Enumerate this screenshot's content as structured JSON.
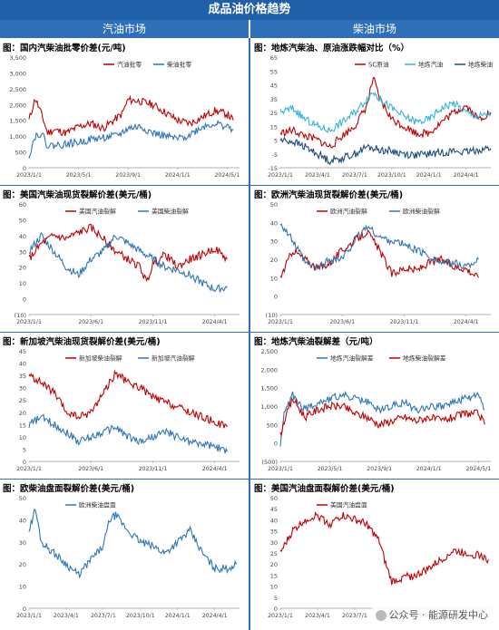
{
  "header": {
    "title": "成品油价格趋势",
    "left": "汽油市场",
    "right": "柴油市场"
  },
  "watermark": "公众号 · 能源研发中心",
  "colors": {
    "red": "#c00000",
    "blue": "#2e75b6",
    "cyan": "#33b5d9",
    "navy": "#1f4e79",
    "header": "#1f5fa8"
  },
  "chart_data": [
    {
      "id": "p1",
      "type": "line",
      "title": "图：国内汽柴油批零价差(元/吨)",
      "yticks": [
        "3,500",
        "3,000",
        "2,500",
        "2,000",
        "1,500",
        "1,000",
        "500",
        "0"
      ],
      "ylim": [
        0,
        3500
      ],
      "xticks": [
        "2023/1/1",
        "2023/5/1",
        "2023/9/1",
        "2024/1/1",
        "2024/5/1"
      ],
      "xlim": [
        0,
        17
      ],
      "xtick_pos": [
        0,
        4,
        8,
        12,
        16
      ],
      "legend": "top-right",
      "series": [
        {
          "name": "汽油批零",
          "color": "#c00000",
          "seed": 11,
          "x": [
            0,
            0.5,
            1,
            1.5,
            2,
            3,
            4,
            5,
            6,
            7,
            7.5,
            8,
            9,
            10,
            11,
            12,
            13,
            14,
            15,
            16,
            16.5
          ],
          "values": [
            1500,
            2200,
            1700,
            1100,
            1200,
            1100,
            1300,
            1400,
            1250,
            1550,
            1700,
            2150,
            2100,
            2000,
            1750,
            1500,
            1400,
            1600,
            1800,
            1700,
            1500
          ]
        },
        {
          "name": "柴油批零",
          "color": "#2e75b6",
          "seed": 22,
          "x": [
            0,
            0.5,
            1,
            1.5,
            2,
            3,
            4,
            5,
            6,
            7,
            7.5,
            8,
            9,
            10,
            11,
            12,
            13,
            14,
            15,
            16,
            16.5
          ],
          "values": [
            400,
            1000,
            1100,
            700,
            700,
            750,
            800,
            900,
            950,
            1000,
            1100,
            1250,
            1300,
            1100,
            1000,
            900,
            1050,
            1300,
            1400,
            1300,
            1200
          ]
        }
      ]
    },
    {
      "id": "p2",
      "type": "line",
      "title": "图：地炼汽柴油、原油涨跌幅对比（%）",
      "yticks": [
        "65",
        "55",
        "45",
        "35",
        "25",
        "15",
        "5",
        "-5",
        "-15"
      ],
      "ylim": [
        -15,
        65
      ],
      "xticks": [
        "2023/1/1",
        "2023/4/1",
        "2023/7/1",
        "2023/10/1",
        "2024/1/1",
        "2024/4/1"
      ],
      "xlim": [
        0,
        17
      ],
      "xtick_pos": [
        0,
        3,
        6,
        9,
        12,
        15
      ],
      "legend": "top-right",
      "series": [
        {
          "name": "SC原油",
          "color": "#c00000",
          "seed": 33,
          "x": [
            0,
            1,
            2,
            3,
            4,
            5,
            6,
            7,
            7.5,
            8,
            9,
            10,
            11,
            12,
            13,
            14,
            15,
            16,
            17
          ],
          "values": [
            10,
            12,
            8,
            5,
            0,
            8,
            15,
            30,
            50,
            35,
            20,
            15,
            10,
            10,
            18,
            25,
            30,
            20,
            25
          ]
        },
        {
          "name": "地炼汽油",
          "color": "#33b5d9",
          "seed": 44,
          "x": [
            0,
            1,
            2,
            3,
            4,
            5,
            6,
            7,
            7.5,
            8,
            9,
            10,
            11,
            12,
            13,
            14,
            15,
            16,
            17
          ],
          "values": [
            25,
            28,
            20,
            15,
            12,
            18,
            25,
            35,
            40,
            35,
            28,
            22,
            18,
            20,
            28,
            32,
            25,
            22,
            24
          ]
        },
        {
          "name": "地炼柴油",
          "color": "#1f4e79",
          "seed": 55,
          "x": [
            0,
            1,
            2,
            3,
            4,
            5,
            6,
            7,
            8,
            9,
            10,
            11,
            12,
            13,
            14,
            15,
            16,
            17
          ],
          "values": [
            5,
            4,
            0,
            -5,
            -10,
            -8,
            -5,
            0,
            -2,
            -3,
            -5,
            -6,
            -5,
            -4,
            -3,
            -4,
            -2,
            -1
          ]
        }
      ]
    },
    {
      "id": "p3",
      "type": "line",
      "title": "图：美国汽柴油现货裂解价差(美元/桶)",
      "yticks": [
        "60",
        "50",
        "40",
        "30",
        "20",
        "10",
        "0",
        "(10)"
      ],
      "ylim": [
        -10,
        60
      ],
      "xticks": [
        "2023/1/1",
        "2023/6/1",
        "2023/11/1",
        "2024/4/1"
      ],
      "xlim": [
        0,
        17
      ],
      "xtick_pos": [
        0,
        5,
        10,
        15
      ],
      "legend": "top",
      "series": [
        {
          "name": "美国汽油裂解",
          "color": "#c00000",
          "seed": 66,
          "x": [
            0,
            1,
            2,
            3,
            4,
            5,
            6,
            7,
            8,
            9,
            9.5,
            10,
            11,
            12,
            13,
            14,
            15,
            16
          ],
          "values": [
            25,
            35,
            40,
            38,
            42,
            45,
            38,
            30,
            25,
            20,
            10,
            22,
            28,
            20,
            25,
            28,
            32,
            25
          ]
        },
        {
          "name": "美国柴油裂解",
          "color": "#2e75b6",
          "seed": 77,
          "x": [
            0,
            1,
            2,
            3,
            4,
            5,
            6,
            7,
            8,
            9,
            10,
            11,
            12,
            13,
            14,
            15,
            16
          ],
          "values": [
            30,
            40,
            30,
            20,
            15,
            25,
            30,
            40,
            35,
            30,
            25,
            20,
            18,
            15,
            10,
            6,
            7
          ]
        }
      ]
    },
    {
      "id": "p4",
      "type": "line",
      "title": "图：欧洲汽柴油现货裂解价差(美元/桶)",
      "yticks": [
        "50",
        "40",
        "30",
        "20",
        "10",
        "0",
        "(10)"
      ],
      "ylim": [
        -10,
        50
      ],
      "xticks": [
        "2023/1/1",
        "2023/6/1",
        "2023/11/1",
        "2024/4/1"
      ],
      "xlim": [
        0,
        17
      ],
      "xtick_pos": [
        0,
        5,
        10,
        15
      ],
      "legend": "top",
      "series": [
        {
          "name": "欧洲汽油裂解",
          "color": "#c00000",
          "seed": 88,
          "x": [
            0,
            1,
            2,
            3,
            4,
            5,
            6,
            7,
            8,
            9,
            10,
            11,
            12,
            13,
            14,
            15,
            16
          ],
          "values": [
            10,
            25,
            20,
            15,
            18,
            25,
            30,
            35,
            25,
            12,
            15,
            14,
            18,
            20,
            16,
            15,
            10
          ]
        },
        {
          "name": "欧洲柴油裂解",
          "color": "#2e75b6",
          "seed": 99,
          "x": [
            0,
            1,
            2,
            3,
            4,
            5,
            6,
            7,
            8,
            9,
            10,
            11,
            12,
            13,
            14,
            15,
            16
          ],
          "values": [
            40,
            30,
            18,
            15,
            20,
            20,
            30,
            38,
            32,
            30,
            28,
            25,
            22,
            18,
            18,
            16,
            20
          ]
        }
      ]
    },
    {
      "id": "p5",
      "type": "line",
      "title": "图：新加坡汽柴油现货裂解价差(美元/桶)",
      "yticks": [
        "45",
        "40",
        "35",
        "30",
        "25",
        "20",
        "15",
        "10",
        "5",
        "0"
      ],
      "ylim": [
        0,
        45
      ],
      "xticks": [
        "2023/1/1",
        "2023/6/1",
        "2023/11/1",
        "2024/4/1"
      ],
      "xlim": [
        0,
        17
      ],
      "xtick_pos": [
        0,
        5,
        10,
        15
      ],
      "legend": "top",
      "series": [
        {
          "name": "新加坡柴油裂解",
          "color": "#c00000",
          "seed": 111,
          "x": [
            0,
            1,
            2,
            3,
            4,
            5,
            6,
            7,
            8,
            9,
            10,
            11,
            12,
            13,
            14,
            15,
            16
          ],
          "values": [
            35,
            32,
            28,
            20,
            18,
            20,
            28,
            36,
            32,
            30,
            26,
            24,
            22,
            20,
            18,
            16,
            14
          ]
        },
        {
          "name": "新加坡汽油裂解",
          "color": "#2e75b6",
          "seed": 122,
          "x": [
            0,
            1,
            2,
            3,
            4,
            5,
            6,
            7,
            8,
            9,
            10,
            11,
            12,
            13,
            14,
            15,
            16
          ],
          "values": [
            15,
            18,
            15,
            12,
            8,
            10,
            12,
            14,
            10,
            8,
            10,
            12,
            10,
            8,
            7,
            6,
            4
          ]
        }
      ]
    },
    {
      "id": "p6",
      "type": "line",
      "title": "图：地炼汽柴油裂解差（元/吨）",
      "yticks": [
        "2,500",
        "2,000",
        "1,500",
        "1,000",
        "500",
        "0",
        "(500)"
      ],
      "ylim": [
        -500,
        2500
      ],
      "xticks": [
        "2023/1/1",
        "2023/5/1",
        "2023/9/1",
        "2024/1/1",
        "2024/5/1"
      ],
      "xlim": [
        0,
        17
      ],
      "xtick_pos": [
        0,
        4,
        8,
        12,
        16
      ],
      "legend": "top",
      "series": [
        {
          "name": "地炼汽油裂解差",
          "color": "#2e75b6",
          "seed": 133,
          "x": [
            0,
            0.3,
            1,
            2,
            3,
            4,
            5,
            6,
            7,
            8,
            9,
            10,
            11,
            12,
            13,
            14,
            15,
            16,
            16.5
          ],
          "values": [
            -100,
            800,
            1300,
            900,
            1100,
            1200,
            1300,
            1200,
            1100,
            900,
            1000,
            1100,
            900,
            1000,
            1000,
            1100,
            1200,
            1300,
            900
          ]
        },
        {
          "name": "地炼柴油裂解差",
          "color": "#c00000",
          "seed": 144,
          "x": [
            0,
            0.3,
            1,
            2,
            3,
            4,
            5,
            6,
            7,
            8,
            9,
            10,
            11,
            12,
            13,
            14,
            15,
            16,
            16.5
          ],
          "values": [
            200,
            600,
            1200,
            700,
            900,
            1000,
            1000,
            800,
            700,
            500,
            600,
            700,
            600,
            700,
            600,
            700,
            800,
            800,
            500
          ]
        }
      ]
    },
    {
      "id": "p7",
      "type": "line",
      "title": "图：欧柴油盘面裂解价差(美元/桶)",
      "yticks": [
        "50",
        "40",
        "30",
        "20",
        "10",
        "0"
      ],
      "ylim": [
        0,
        50
      ],
      "xticks": [
        "2023/1/1",
        "2023/4/1",
        "2023/7/1",
        "2023/10/1",
        "2024/1/1",
        "2024/4/1"
      ],
      "xlim": [
        0,
        17
      ],
      "xtick_pos": [
        0,
        3,
        6,
        9,
        12,
        15
      ],
      "legend": "top",
      "series": [
        {
          "name": "欧洲柴油盘面",
          "color": "#2e75b6",
          "seed": 155,
          "x": [
            0,
            0.5,
            1,
            2,
            3,
            4,
            5,
            6,
            6.5,
            7,
            8,
            9,
            10,
            11,
            12,
            13,
            14,
            15,
            16,
            16.8
          ],
          "values": [
            35,
            45,
            30,
            25,
            20,
            15,
            22,
            28,
            40,
            42,
            35,
            30,
            28,
            25,
            30,
            35,
            25,
            18,
            18,
            20
          ]
        }
      ]
    },
    {
      "id": "p8",
      "type": "line",
      "title": "图：美国汽油盘面裂解价差(美元/桶)",
      "yticks": [
        "50",
        "45",
        "40",
        "35",
        "30",
        "25",
        "20",
        "15",
        "10",
        "5",
        "0"
      ],
      "ylim": [
        0,
        50
      ],
      "xticks": [
        "2023/1/1",
        "2023/4/1",
        "2023/7/1",
        "2023/10/1",
        "2024/1/1",
        "2024/4/1"
      ],
      "xlim": [
        0,
        17
      ],
      "xtick_pos": [
        0,
        3,
        6,
        9,
        12,
        15
      ],
      "legend": "top",
      "series": [
        {
          "name": "美国汽油盘面",
          "color": "#c00000",
          "seed": 166,
          "x": [
            0,
            1,
            2,
            3,
            4,
            5,
            6,
            7,
            8,
            8.5,
            9,
            10,
            11,
            12,
            13,
            14,
            15,
            16,
            16.8
          ],
          "values": [
            25,
            35,
            40,
            42,
            38,
            42,
            40,
            38,
            30,
            20,
            12,
            14,
            15,
            18,
            22,
            26,
            25,
            24,
            22
          ]
        }
      ]
    }
  ]
}
